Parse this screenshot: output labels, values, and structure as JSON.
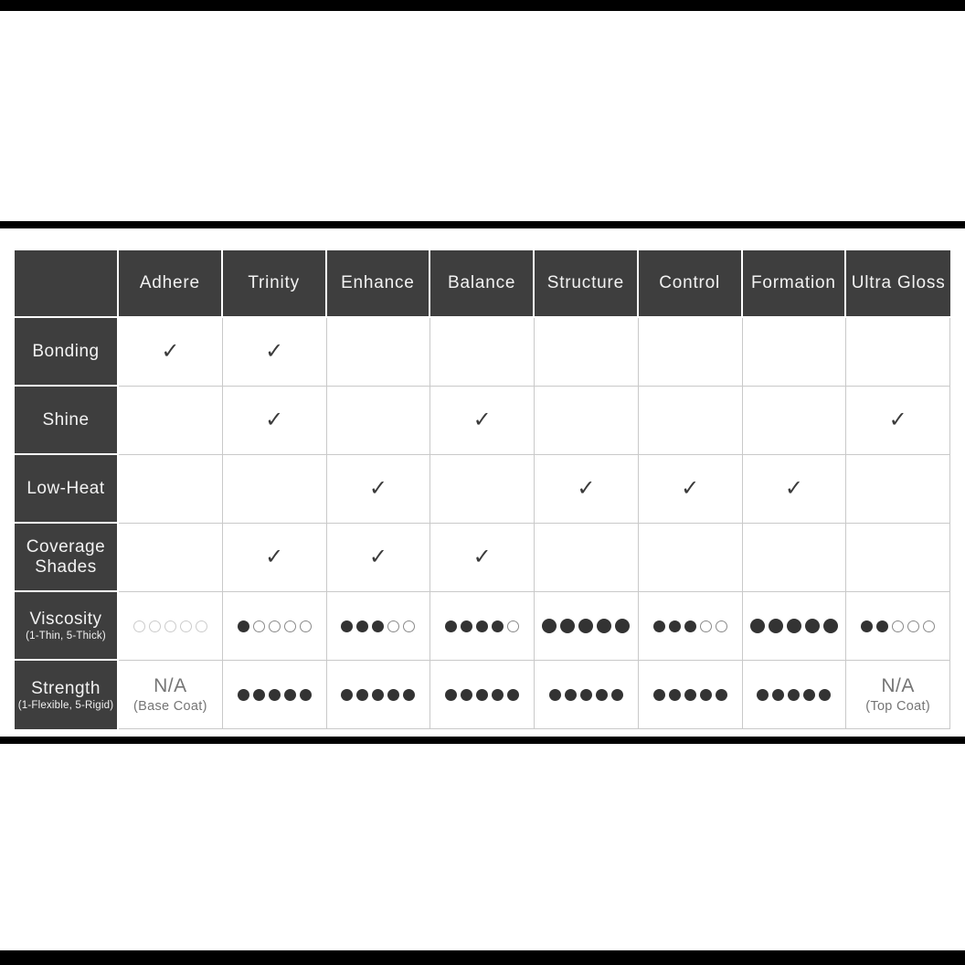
{
  "page": {
    "background": "#ffffff"
  },
  "icons": {
    "check": "✓"
  },
  "style": {
    "bar_color": "#000000",
    "header_bg": "#3e3e3e",
    "header_text": "#f2f2f2",
    "grid_line": "#c9c9c9",
    "check_color": "#3b3b3b",
    "dot_filled": "#333333",
    "dot_empty_outline": "#8a8a8a",
    "dot_empty_outline_light": "#cccccc",
    "na_text": "#757575"
  },
  "chart_data": {
    "type": "table",
    "title": "Product feature comparison matrix",
    "columns": [
      "Adhere",
      "Trinity",
      "Enhance",
      "Balance",
      "Structure",
      "Control",
      "Formation",
      "Ultra Gloss"
    ],
    "rows": [
      {
        "label": "Bonding",
        "sublabel": "",
        "kind": "check",
        "values": [
          1,
          1,
          0,
          0,
          0,
          0,
          0,
          0
        ]
      },
      {
        "label": "Shine",
        "sublabel": "",
        "kind": "check",
        "values": [
          0,
          1,
          0,
          1,
          0,
          0,
          0,
          1
        ]
      },
      {
        "label": "Low-Heat",
        "sublabel": "",
        "kind": "check",
        "values": [
          0,
          0,
          1,
          0,
          1,
          1,
          1,
          0
        ]
      },
      {
        "label": "Coverage Shades",
        "sublabel": "",
        "kind": "check",
        "values": [
          0,
          1,
          1,
          1,
          0,
          0,
          0,
          0
        ]
      },
      {
        "label": "Viscosity",
        "sublabel": "(1-Thin, 5-Thick)",
        "kind": "dots",
        "scale": 5,
        "values": [
          0,
          1,
          3,
          4,
          5,
          3,
          5,
          2
        ],
        "large": [
          0,
          0,
          0,
          0,
          1,
          0,
          1,
          0
        ]
      },
      {
        "label": "Strength",
        "sublabel": "(1-Flexible, 5-Rigid)",
        "kind": "dots",
        "scale": 5,
        "values": [
          {
            "na": "N/A",
            "note": "(Base Coat)"
          },
          5,
          5,
          5,
          5,
          5,
          5,
          {
            "na": "N/A",
            "note": "(Top Coat)"
          }
        ],
        "large": [
          0,
          0,
          0,
          0,
          0,
          0,
          0,
          0
        ]
      }
    ]
  }
}
